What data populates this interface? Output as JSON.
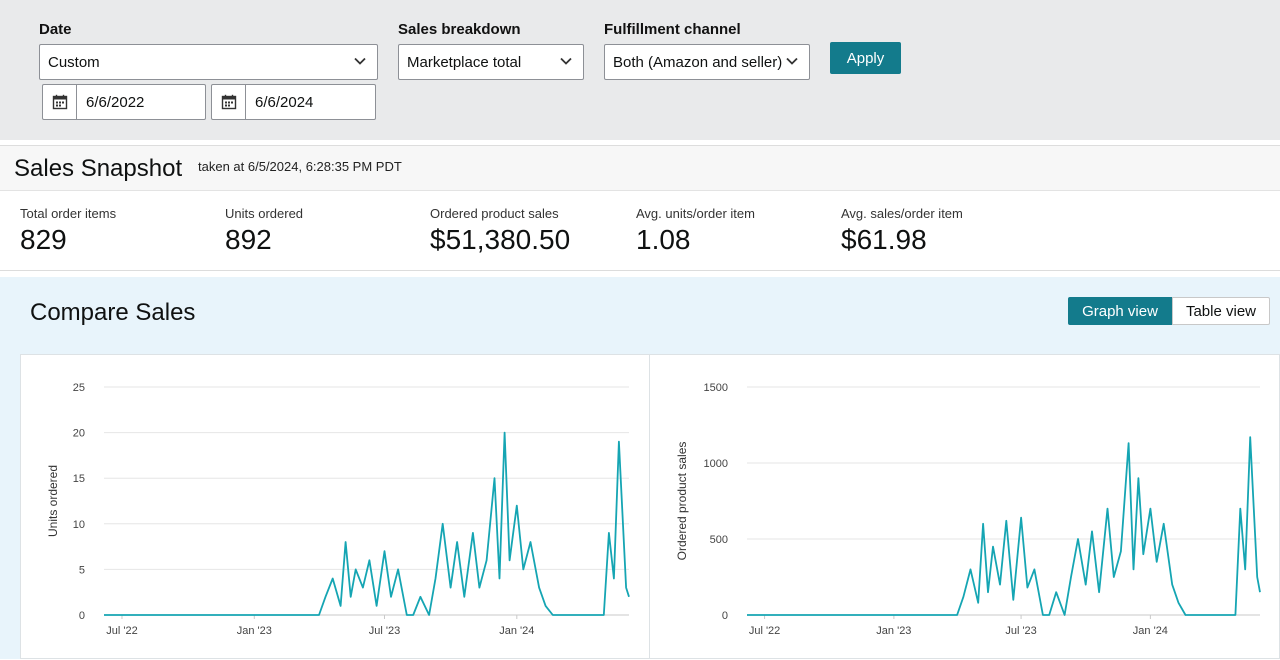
{
  "filters": {
    "date_label": "Date",
    "date_value": "Custom",
    "start_date": "6/6/2022",
    "end_date": "6/6/2024",
    "breakdown_label": "Sales breakdown",
    "breakdown_value": "Marketplace total",
    "channel_label": "Fulfillment channel",
    "channel_value": "Both (Amazon and seller)",
    "apply_label": "Apply"
  },
  "snapshot": {
    "title": "Sales Snapshot",
    "taken": "taken at 6/5/2024, 6:28:35 PM PDT",
    "metrics": [
      {
        "label": "Total order items",
        "value": "829"
      },
      {
        "label": "Units ordered",
        "value": "892"
      },
      {
        "label": "Ordered product sales",
        "value": "$51,380.50"
      },
      {
        "label": "Avg. units/order item",
        "value": "1.08"
      },
      {
        "label": "Avg. sales/order item",
        "value": "$61.98"
      }
    ]
  },
  "compare": {
    "title": "Compare Sales",
    "graph_view": "Graph view",
    "table_view": "Table view"
  },
  "colors": {
    "accent": "#137b8c",
    "series": "#15a5b3"
  },
  "chart_data": [
    {
      "type": "line",
      "ylabel": "Units ordered",
      "xlabel": "",
      "ylim": [
        0,
        25
      ],
      "yticks": [
        0,
        5,
        10,
        15,
        20,
        25
      ],
      "xticks": [
        "Jul '22",
        "Jan '23",
        "Jul '23",
        "Jan '24"
      ],
      "grid": true,
      "series": [
        {
          "x": [
            "2022-06-06",
            "2023-04-01",
            "2023-04-10",
            "2023-04-20",
            "2023-05-01",
            "2023-05-08",
            "2023-05-15",
            "2023-05-22",
            "2023-06-01",
            "2023-06-10",
            "2023-06-20",
            "2023-07-01",
            "2023-07-10",
            "2023-07-20",
            "2023-08-01",
            "2023-08-10",
            "2023-08-20",
            "2023-09-01",
            "2023-09-10",
            "2023-09-20",
            "2023-10-01",
            "2023-10-10",
            "2023-10-20",
            "2023-11-01",
            "2023-11-10",
            "2023-11-20",
            "2023-12-01",
            "2023-12-08",
            "2023-12-15",
            "2023-12-22",
            "2024-01-01",
            "2024-01-10",
            "2024-01-20",
            "2024-02-01",
            "2024-02-10",
            "2024-02-20",
            "2024-03-01",
            "2024-03-10",
            "2024-04-01",
            "2024-04-20",
            "2024-05-01",
            "2024-05-08",
            "2024-05-15",
            "2024-05-22",
            "2024-06-01",
            "2024-06-05"
          ],
          "y": [
            0,
            0,
            2,
            4,
            1,
            8,
            2,
            5,
            3,
            6,
            1,
            7,
            2,
            5,
            0,
            0,
            2,
            0,
            4,
            10,
            3,
            8,
            2,
            9,
            3,
            6,
            15,
            4,
            20,
            6,
            12,
            5,
            8,
            3,
            1,
            0,
            0,
            0,
            0,
            0,
            0,
            9,
            4,
            19,
            3,
            2
          ]
        }
      ]
    },
    {
      "type": "line",
      "ylabel": "Ordered product sales",
      "xlabel": "",
      "ylim": [
        0,
        1500
      ],
      "yticks": [
        0,
        500,
        1000,
        1500
      ],
      "xticks": [
        "Jul '22",
        "Jan '23",
        "Jul '23",
        "Jan '24"
      ],
      "grid": true,
      "series": [
        {
          "x": [
            "2022-06-06",
            "2023-04-01",
            "2023-04-10",
            "2023-04-20",
            "2023-05-01",
            "2023-05-08",
            "2023-05-15",
            "2023-05-22",
            "2023-06-01",
            "2023-06-10",
            "2023-06-20",
            "2023-07-01",
            "2023-07-10",
            "2023-07-20",
            "2023-08-01",
            "2023-08-10",
            "2023-08-20",
            "2023-09-01",
            "2023-09-10",
            "2023-09-20",
            "2023-10-01",
            "2023-10-10",
            "2023-10-20",
            "2023-11-01",
            "2023-11-10",
            "2023-11-20",
            "2023-12-01",
            "2023-12-08",
            "2023-12-15",
            "2023-12-22",
            "2024-01-01",
            "2024-01-10",
            "2024-01-20",
            "2024-02-01",
            "2024-02-10",
            "2024-02-20",
            "2024-03-01",
            "2024-03-10",
            "2024-04-01",
            "2024-04-20",
            "2024-05-01",
            "2024-05-08",
            "2024-05-15",
            "2024-05-22",
            "2024-06-01",
            "2024-06-05"
          ],
          "y": [
            0,
            0,
            120,
            300,
            80,
            600,
            150,
            450,
            200,
            620,
            100,
            640,
            180,
            300,
            0,
            0,
            150,
            0,
            250,
            500,
            200,
            550,
            150,
            700,
            250,
            420,
            1130,
            300,
            900,
            400,
            700,
            350,
            600,
            200,
            80,
            0,
            0,
            0,
            0,
            0,
            0,
            700,
            300,
            1170,
            250,
            150
          ]
        }
      ]
    }
  ]
}
